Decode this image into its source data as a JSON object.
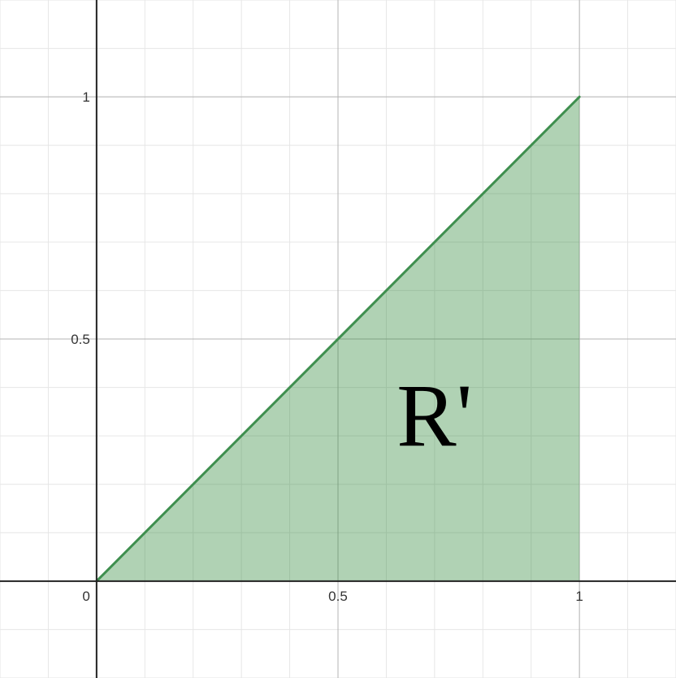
{
  "chart_data": {
    "type": "area",
    "xlim": [
      -0.2,
      1.2
    ],
    "ylim": [
      -0.2,
      1.2
    ],
    "grid": true,
    "minor_grid_step": 0.1,
    "major_grid_step": 0.5,
    "x_ticks": [
      {
        "value": 0.5,
        "label": "0.5"
      },
      {
        "value": 1,
        "label": "1"
      }
    ],
    "y_ticks": [
      {
        "value": 0.5,
        "label": "0.5"
      },
      {
        "value": 1,
        "label": "1"
      }
    ],
    "origin_label": "0",
    "series": [
      {
        "x": [
          0,
          1,
          1
        ],
        "y": [
          0,
          1,
          0
        ]
      }
    ],
    "annotation": {
      "text": "R'",
      "x": 0.7,
      "y": 0.28
    },
    "colors": {
      "fill": "#2f8a3a",
      "line": "#3f8f4f"
    }
  }
}
